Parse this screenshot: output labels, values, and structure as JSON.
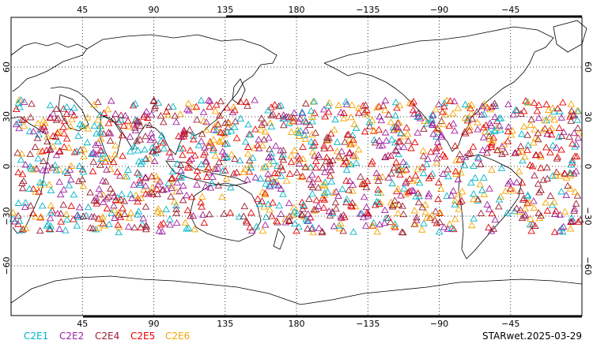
{
  "map": {
    "projection": "cylindrical-equidistant",
    "central_longitude": 180,
    "lat_range": [
      -90,
      90
    ],
    "lon_ticks": [
      45,
      90,
      135,
      180,
      -135,
      -90,
      -45
    ],
    "lon_tick_labels": [
      "45",
      "90",
      "135",
      "180",
      "−135",
      "−90",
      "−45"
    ],
    "lat_ticks": [
      60,
      30,
      0,
      -30,
      -60
    ],
    "lat_tick_labels": [
      "60",
      "30",
      "0",
      "−30",
      "−60"
    ],
    "gridlines": "dotted",
    "marker": "open-triangle",
    "observation_band_lat": [
      -40,
      40
    ]
  },
  "legend": {
    "items": [
      {
        "label": "C2E1",
        "color": "#00b4c8"
      },
      {
        "label": "C2E2",
        "color": "#a020a0"
      },
      {
        "label": "C2E4",
        "color": "#9b1e32"
      },
      {
        "label": "C2E5",
        "color": "#e60000"
      },
      {
        "label": "C2E6",
        "color": "#f5a500"
      }
    ]
  },
  "title": "STARwet.2025-03-29"
}
